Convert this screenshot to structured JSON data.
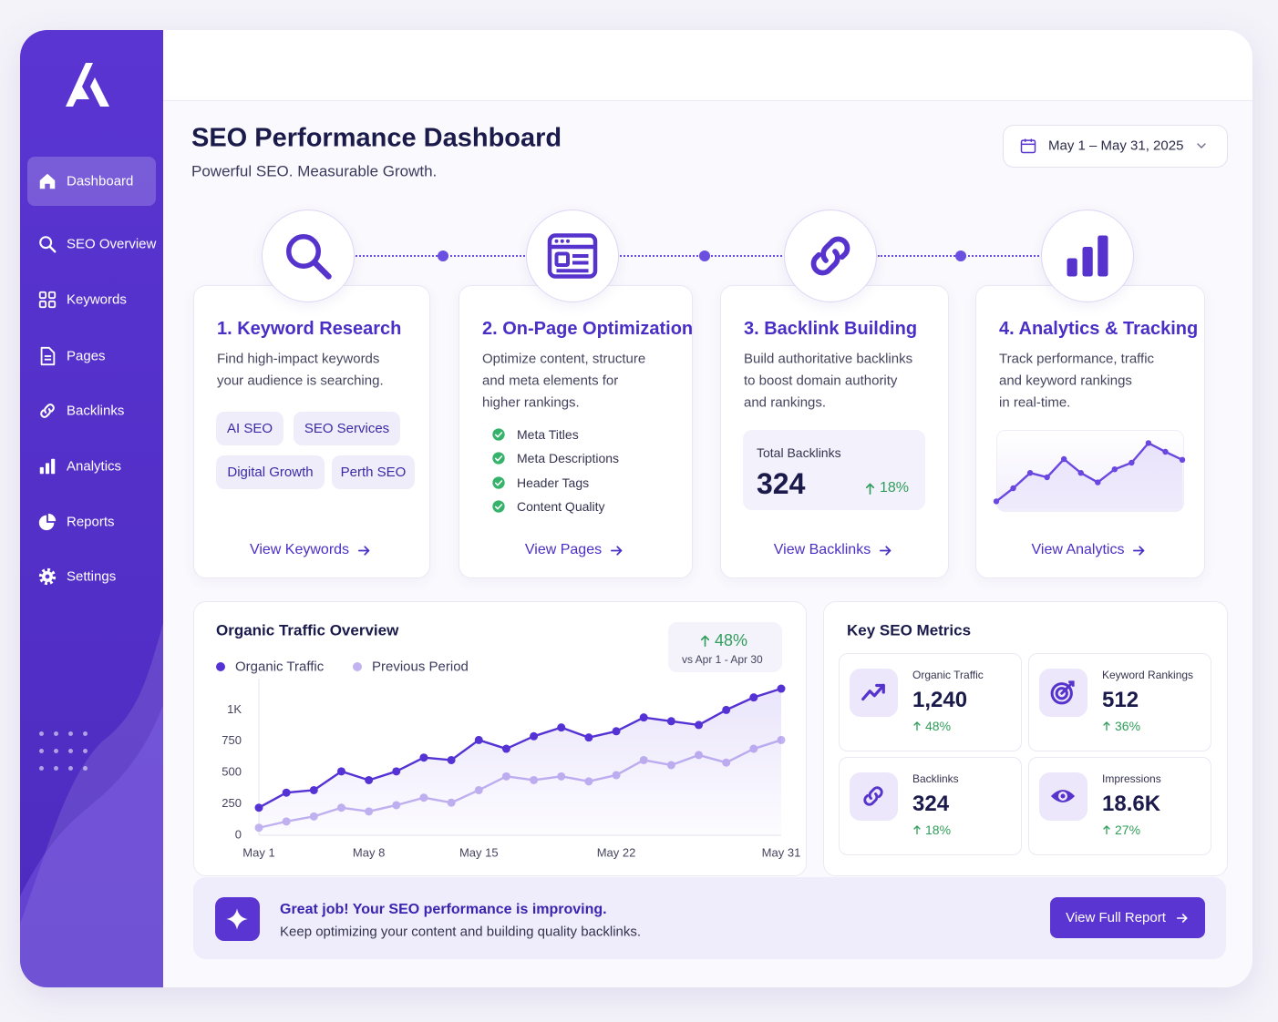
{
  "sidebar": {
    "nav": [
      "Dashboard",
      "SEO Overview",
      "Keywords",
      "Pages",
      "Backlinks",
      "Analytics",
      "Reports",
      "Settings"
    ]
  },
  "header": {
    "title": "SEO Performance Dashboard",
    "subtitle": "Powerful SEO. Measurable Growth.",
    "date_range": "May 1 – May 31, 2025"
  },
  "steps": [
    {
      "title": "1. Keyword Research",
      "description": [
        "Find high-impact keywords",
        "your audience is searching."
      ],
      "tags": [
        "AI SEO",
        "SEO Services",
        "Digital Growth",
        "Perth SEO"
      ],
      "link": "View Keywords"
    },
    {
      "title": "2. On-Page Optimization",
      "description": [
        "Optimize content, structure",
        "and meta elements for",
        "higher rankings."
      ],
      "checklist": [
        "Meta Titles",
        "Meta Descriptions",
        "Header Tags",
        "Content Quality"
      ],
      "link": "View Pages"
    },
    {
      "title": "3. Backlink Building",
      "description": [
        "Build authoritative backlinks",
        "to boost domain authority",
        "and rankings."
      ],
      "stat": {
        "label": "Total Backlinks",
        "value": "324",
        "change": "18%"
      },
      "link": "View Backlinks"
    },
    {
      "title": "4. Analytics & Tracking",
      "description": [
        "Track performance, traffic",
        "and keyword rankings",
        "in real-time."
      ],
      "sparkline": {
        "type": "line",
        "values": [
          12,
          30,
          51,
          45,
          70,
          51,
          38,
          56,
          65,
          92,
          80,
          69
        ],
        "ylim": [
          0,
          100
        ],
        "color": "#6a48e0"
      },
      "link": "View Analytics"
    }
  ],
  "chart_data": {
    "type": "line",
    "title": "Organic Traffic Overview",
    "categories": [
      "May 1",
      null,
      null,
      null,
      "May 8",
      null,
      null,
      null,
      "May 15",
      null,
      null,
      null,
      null,
      "May 22",
      null,
      null,
      null,
      null,
      null,
      "May 31"
    ],
    "series": [
      {
        "name": "Organic Traffic",
        "color": "#5532d4",
        "values": [
          220,
          340,
          360,
          510,
          440,
          510,
          620,
          600,
          760,
          690,
          790,
          860,
          780,
          830,
          940,
          910,
          880,
          1000,
          1100,
          1170
        ]
      },
      {
        "name": "Previous Period",
        "color": "#c2b3f0",
        "values": [
          60,
          110,
          150,
          220,
          190,
          240,
          300,
          260,
          360,
          470,
          440,
          470,
          430,
          480,
          600,
          560,
          640,
          580,
          690,
          760
        ]
      }
    ],
    "ylim": [
      0,
      1250
    ],
    "yticks": [
      0,
      250,
      500,
      750,
      {
        "value": 1000,
        "label": "1K"
      }
    ],
    "grid": false,
    "change": "48%",
    "change_note": "vs Apr 1 - Apr 30"
  },
  "metrics": {
    "title": "Key SEO Metrics",
    "items": [
      {
        "label": "Organic Traffic",
        "value": "1,240",
        "change": "48%"
      },
      {
        "label": "Keyword Rankings",
        "value": "512",
        "change": "36%"
      },
      {
        "label": "Backlinks",
        "value": "324",
        "change": "18%"
      },
      {
        "label": "Impressions",
        "value": "18.6K",
        "change": "27%"
      }
    ]
  },
  "banner": {
    "title": "Great job! Your SEO performance is improving.",
    "text": "Keep optimizing your content and building quality backlinks.",
    "button": "View Full Report"
  }
}
